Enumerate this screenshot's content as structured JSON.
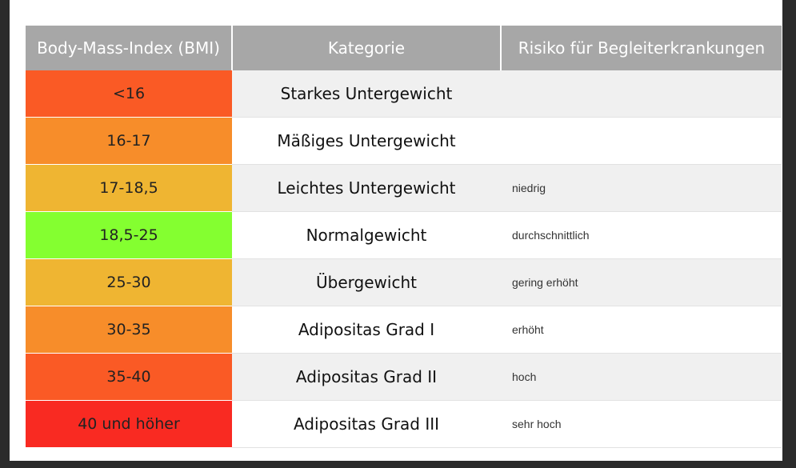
{
  "table": {
    "headers": [
      "Body-Mass-Index (BMI)",
      "Kategorie",
      "Risiko für Begleiterkrankungen"
    ],
    "rows": [
      {
        "bmi": "<16",
        "category": "Starkes Untergewicht",
        "risk": "",
        "color": "#fa5a25"
      },
      {
        "bmi": "16-17",
        "category": "Mäßiges Untergewicht",
        "risk": "",
        "color": "#f78d2a"
      },
      {
        "bmi": "17-18,5",
        "category": "Leichtes Untergewicht",
        "risk": "niedrig",
        "color": "#efb532"
      },
      {
        "bmi": "18,5-25",
        "category": "Normalgewicht",
        "risk": "durchschnittlich",
        "color": "#84ff30"
      },
      {
        "bmi": "25-30",
        "category": "Übergewicht",
        "risk": "gering erhöht",
        "color": "#efb532"
      },
      {
        "bmi": "30-35",
        "category": "Adipositas Grad I",
        "risk": "erhöht",
        "color": "#f78d2a"
      },
      {
        "bmi": "35-40",
        "category": "Adipositas Grad II",
        "risk": "hoch",
        "color": "#fa5a25"
      },
      {
        "bmi": "40 und höher",
        "category": "Adipositas Grad III",
        "risk": "sehr hoch",
        "color": "#f92a22"
      }
    ]
  }
}
